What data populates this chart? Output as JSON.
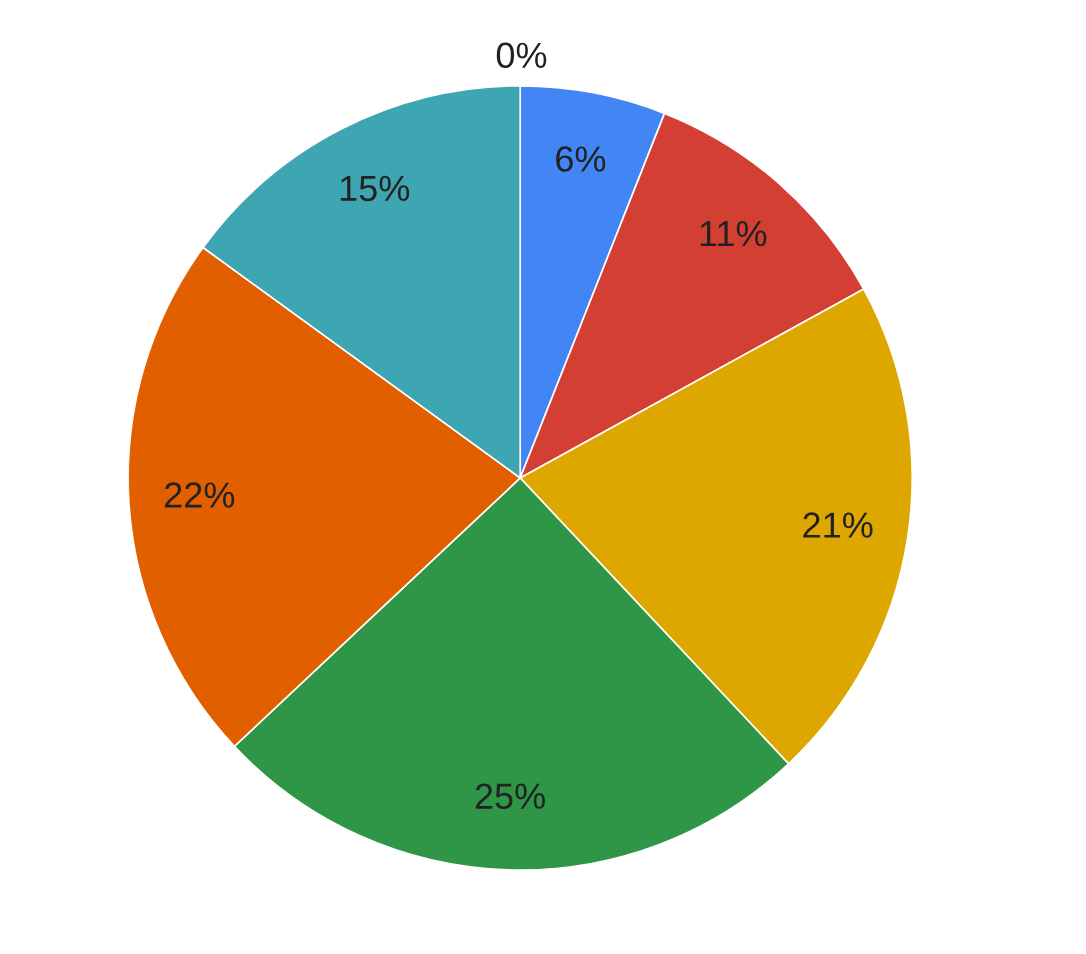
{
  "chart_data": {
    "type": "pie",
    "categories": [
      null,
      null,
      null,
      null,
      null,
      null,
      null
    ],
    "values": [
      0,
      6,
      11,
      21,
      25,
      22,
      15
    ],
    "value_labels": [
      "0%",
      "6%",
      "11%",
      "21%",
      "25%",
      "22%",
      "15%"
    ],
    "colors": [
      "#7baaf7",
      "#4285f4",
      "#d33f32",
      "#dea700",
      "#2f9647",
      "#e25f00",
      "#3ea6b2"
    ]
  }
}
